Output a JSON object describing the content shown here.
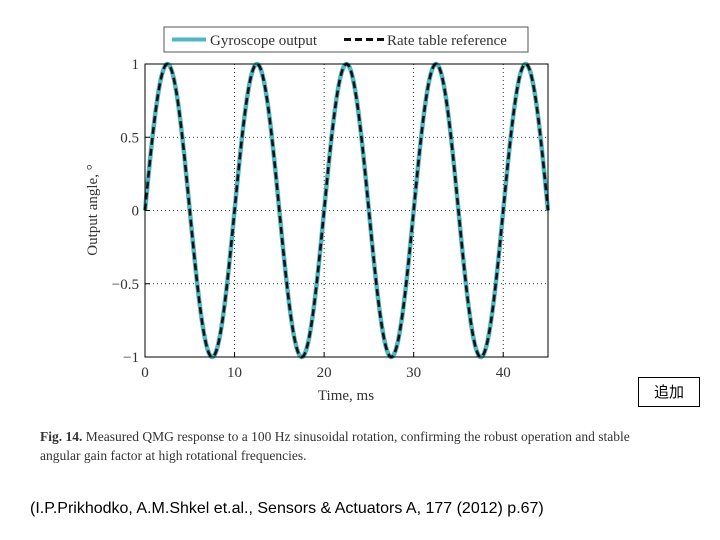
{
  "chart_data": {
    "type": "line",
    "xlabel": "Time, ms",
    "ylabel": "Output angle, °",
    "xlim": [
      0,
      45
    ],
    "ylim": [
      -1,
      1
    ],
    "xticks": [
      0,
      10,
      20,
      30,
      40
    ],
    "yticks": [
      1,
      0.5,
      0,
      -0.5,
      -1
    ],
    "xtick_labels": [
      "0",
      "10",
      "20",
      "30",
      "40"
    ],
    "ytick_labels": [
      "1",
      "0.5",
      "0",
      "−0.5",
      "−1"
    ],
    "grid": true,
    "legend_position": "top",
    "frequency_hz": 100,
    "series": [
      {
        "name": "Gyroscope output",
        "function": "sin(2*pi*0.1*t)",
        "amplitude": 1,
        "period_ms": 10,
        "color": "#4fb7c3",
        "style": "solid"
      },
      {
        "name": "Rate table reference",
        "function": "sin(2*pi*0.1*t)",
        "amplitude": 1,
        "period_ms": 10,
        "color": "#111111",
        "style": "dashed"
      }
    ]
  },
  "caption": {
    "label": "Fig. 14.",
    "text": "Measured QMG response to a 100 Hz sinusoidal rotation, confirming the robust operation and stable angular gain factor at high rotational frequencies."
  },
  "citation": "(I.P.Prikhodko, A.M.Shkel et.al., Sensors & Actuators A, 177 (2012) p.67)",
  "tag": "追加"
}
